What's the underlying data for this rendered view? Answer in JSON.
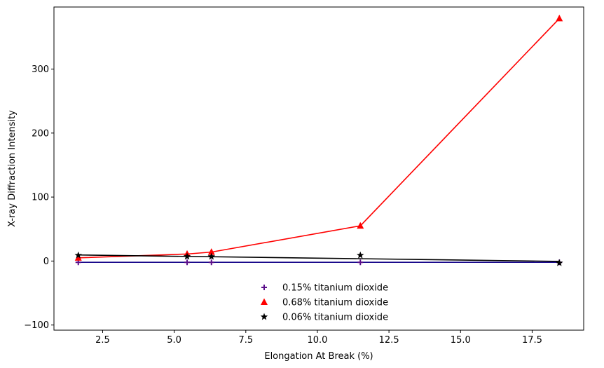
{
  "chart_data": {
    "type": "scatter",
    "xlabel": "Elongation At Break (%)",
    "ylabel": "X-ray Diffraction Intensity",
    "xlim": [
      0.8,
      19.3
    ],
    "ylim": [
      -108,
      397
    ],
    "xticks": [
      2.5,
      5.0,
      7.5,
      10.0,
      12.5,
      15.0,
      17.5
    ],
    "xtick_labels": [
      "2.5",
      "5.0",
      "7.5",
      "10.0",
      "12.5",
      "15.0",
      "17.5"
    ],
    "yticks": [
      -100,
      0,
      100,
      200,
      300
    ],
    "ytick_labels": [
      "−100",
      "0",
      "100",
      "200",
      "300"
    ],
    "grid": false,
    "legend_position": "bottom-center",
    "series": [
      {
        "name": "0.15% titanium dioxide",
        "marker": "plus",
        "color": "#5b0f8a",
        "line_color": "#1a0a8c",
        "x": [
          1.65,
          5.45,
          6.3,
          11.5,
          18.45
        ],
        "y": [
          -2,
          -2,
          -2,
          -2,
          -2
        ],
        "fit": [
          -2,
          -2
        ]
      },
      {
        "name": "0.68% titanium dioxide",
        "marker": "triangle",
        "color": "#ff0000",
        "line_color": "#ff0000",
        "x": [
          1.65,
          5.45,
          6.3,
          11.5,
          18.45
        ],
        "y": [
          5,
          11,
          14,
          55,
          379
        ],
        "fit": null
      },
      {
        "name": "0.06% titanium dioxide",
        "marker": "star",
        "color": "#000000",
        "line_color": "#000000",
        "x": [
          1.65,
          5.45,
          6.3,
          11.5,
          18.45
        ],
        "y": [
          9,
          7,
          7,
          9,
          -3
        ],
        "fit": [
          9.5,
          -0.5
        ]
      }
    ]
  }
}
